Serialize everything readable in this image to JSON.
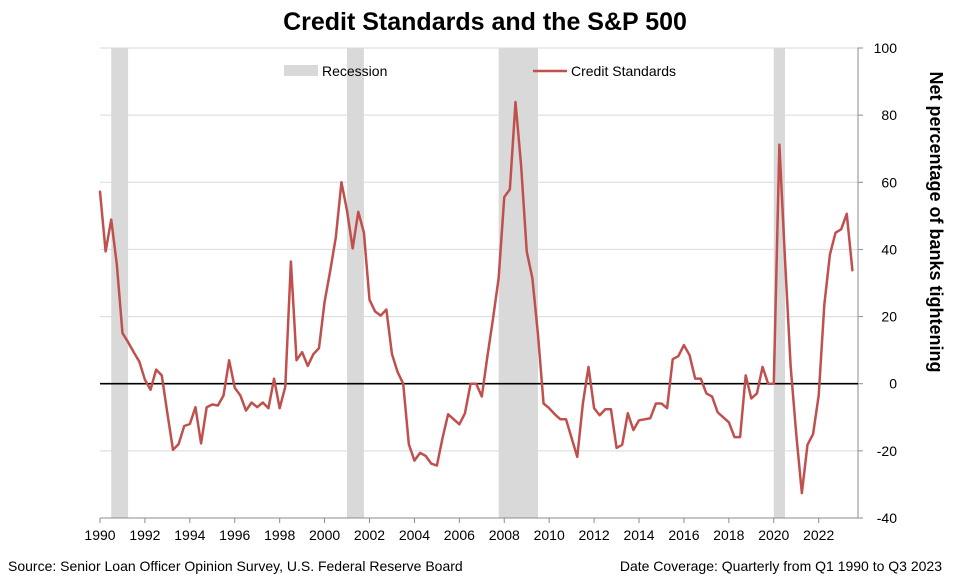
{
  "chart_data": {
    "type": "line",
    "title": "Credit Standards and the S&P 500",
    "ylabel": "Net percentage of banks tightening",
    "ylim": [
      -40,
      100
    ],
    "yticks": [
      -40,
      -20,
      0,
      20,
      40,
      60,
      80,
      100
    ],
    "xlim": [
      1990,
      2023.75
    ],
    "xticks": [
      1990,
      1992,
      1994,
      1996,
      1998,
      2000,
      2002,
      2004,
      2006,
      2008,
      2010,
      2012,
      2014,
      2016,
      2018,
      2020,
      2022
    ],
    "grid": "horizontal",
    "legend_position": "top",
    "legend": {
      "recession_label": "Recession",
      "series_label": "Credit Standards"
    },
    "recessions": [
      [
        1990.5,
        1991.25
      ],
      [
        2001.0,
        2001.75
      ],
      [
        2007.75,
        2009.5
      ],
      [
        2020.0,
        2020.5
      ]
    ],
    "series": [
      {
        "name": "Credit Standards",
        "color": "#c0504d",
        "points": [
          [
            1990.0,
            57.2
          ],
          [
            1990.25,
            39.4
          ],
          [
            1990.5,
            48.9
          ],
          [
            1990.75,
            35.5
          ],
          [
            1991.0,
            15.1
          ],
          [
            1991.25,
            12.4
          ],
          [
            1991.5,
            9.4
          ],
          [
            1991.75,
            6.6
          ],
          [
            1992.0,
            1.2
          ],
          [
            1992.25,
            -1.8
          ],
          [
            1992.5,
            4.2
          ],
          [
            1992.75,
            2.5
          ],
          [
            1993.0,
            -8.8
          ],
          [
            1993.25,
            -19.7
          ],
          [
            1993.5,
            -18.0
          ],
          [
            1993.75,
            -12.6
          ],
          [
            1994.0,
            -12.0
          ],
          [
            1994.25,
            -7.0
          ],
          [
            1994.5,
            -17.8
          ],
          [
            1994.75,
            -7.0
          ],
          [
            1995.0,
            -6.2
          ],
          [
            1995.25,
            -6.5
          ],
          [
            1995.5,
            -3.5
          ],
          [
            1995.75,
            7.0
          ],
          [
            1996.0,
            -1.2
          ],
          [
            1996.25,
            -3.5
          ],
          [
            1996.5,
            -8.0
          ],
          [
            1996.75,
            -5.6
          ],
          [
            1997.0,
            -7.0
          ],
          [
            1997.25,
            -5.6
          ],
          [
            1997.5,
            -7.3
          ],
          [
            1997.75,
            1.5
          ],
          [
            1998.0,
            -7.3
          ],
          [
            1998.25,
            -0.9
          ],
          [
            1998.5,
            36.4
          ],
          [
            1998.75,
            7.0
          ],
          [
            1999.0,
            9.4
          ],
          [
            1999.25,
            5.3
          ],
          [
            1999.5,
            8.8
          ],
          [
            1999.75,
            10.6
          ],
          [
            2000.0,
            24.4
          ],
          [
            2000.25,
            33.6
          ],
          [
            2000.5,
            43.6
          ],
          [
            2000.75,
            60.0
          ],
          [
            2001.0,
            51.5
          ],
          [
            2001.25,
            40.3
          ],
          [
            2001.5,
            51.2
          ],
          [
            2001.75,
            45.0
          ],
          [
            2002.0,
            25.0
          ],
          [
            2002.25,
            21.5
          ],
          [
            2002.5,
            20.3
          ],
          [
            2002.75,
            22.1
          ],
          [
            2003.0,
            8.8
          ],
          [
            2003.25,
            3.5
          ],
          [
            2003.5,
            0.0
          ],
          [
            2003.75,
            -18.0
          ],
          [
            2004.0,
            -22.9
          ],
          [
            2004.25,
            -20.6
          ],
          [
            2004.5,
            -21.5
          ],
          [
            2004.75,
            -23.8
          ],
          [
            2005.0,
            -24.4
          ],
          [
            2005.25,
            -16.2
          ],
          [
            2005.5,
            -9.1
          ],
          [
            2005.75,
            -10.6
          ],
          [
            2006.0,
            -12.1
          ],
          [
            2006.25,
            -8.8
          ],
          [
            2006.5,
            0.0
          ],
          [
            2006.75,
            0.0
          ],
          [
            2007.0,
            -3.8
          ],
          [
            2007.25,
            8.2
          ],
          [
            2007.5,
            19.4
          ],
          [
            2007.75,
            31.5
          ],
          [
            2008.0,
            55.6
          ],
          [
            2008.25,
            57.9
          ],
          [
            2008.5,
            83.9
          ],
          [
            2008.75,
            65.0
          ],
          [
            2009.0,
            39.4
          ],
          [
            2009.25,
            31.5
          ],
          [
            2009.5,
            14.7
          ],
          [
            2009.75,
            -5.9
          ],
          [
            2010.0,
            -7.3
          ],
          [
            2010.25,
            -9.1
          ],
          [
            2010.5,
            -10.6
          ],
          [
            2010.75,
            -10.6
          ],
          [
            2011.0,
            -16.2
          ],
          [
            2011.25,
            -21.8
          ],
          [
            2011.5,
            -5.9
          ],
          [
            2011.75,
            5.0
          ],
          [
            2012.0,
            -7.3
          ],
          [
            2012.25,
            -9.4
          ],
          [
            2012.5,
            -7.6
          ],
          [
            2012.75,
            -7.6
          ],
          [
            2013.0,
            -19.1
          ],
          [
            2013.25,
            -18.2
          ],
          [
            2013.5,
            -8.8
          ],
          [
            2013.75,
            -13.8
          ],
          [
            2014.0,
            -10.9
          ],
          [
            2014.25,
            -10.6
          ],
          [
            2014.5,
            -10.3
          ],
          [
            2014.75,
            -5.9
          ],
          [
            2015.0,
            -5.9
          ],
          [
            2015.25,
            -7.3
          ],
          [
            2015.5,
            7.3
          ],
          [
            2015.75,
            8.2
          ],
          [
            2016.0,
            11.5
          ],
          [
            2016.25,
            8.5
          ],
          [
            2016.5,
            1.5
          ],
          [
            2016.75,
            1.5
          ],
          [
            2017.0,
            -2.9
          ],
          [
            2017.25,
            -3.8
          ],
          [
            2017.5,
            -8.5
          ],
          [
            2017.75,
            -10.0
          ],
          [
            2018.0,
            -11.5
          ],
          [
            2018.25,
            -15.9
          ],
          [
            2018.5,
            -15.9
          ],
          [
            2018.75,
            2.5
          ],
          [
            2019.0,
            -4.4
          ],
          [
            2019.25,
            -2.9
          ],
          [
            2019.5,
            5.0
          ],
          [
            2019.75,
            0.0
          ],
          [
            2020.0,
            0.0
          ],
          [
            2020.25,
            71.2
          ],
          [
            2020.5,
            37.0
          ],
          [
            2020.75,
            5.3
          ],
          [
            2021.0,
            -15.0
          ],
          [
            2021.25,
            -32.6
          ],
          [
            2021.5,
            -18.2
          ],
          [
            2021.75,
            -15.0
          ],
          [
            2022.0,
            -3.5
          ],
          [
            2022.25,
            23.5
          ],
          [
            2022.5,
            38.5
          ],
          [
            2022.75,
            45.0
          ],
          [
            2023.0,
            46.0
          ],
          [
            2023.25,
            50.6
          ],
          [
            2023.5,
            33.8
          ]
        ]
      }
    ]
  },
  "footer": {
    "source": "Source: Senior Loan Officer Opinion Survey, U.S. Federal Reserve Board",
    "coverage": "Date Coverage: Quarterly from Q1 1990 to Q3 2023"
  }
}
